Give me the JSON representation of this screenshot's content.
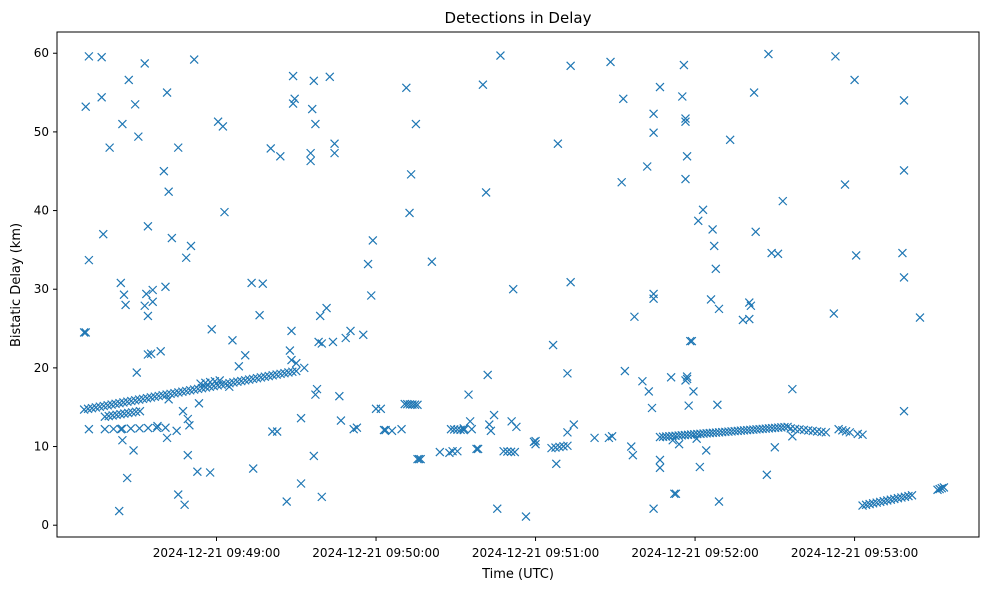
{
  "chart_data": {
    "type": "scatter",
    "title": "Detections in Delay",
    "xlabel": "Time (UTC)",
    "ylabel": "Bistatic Delay (km)",
    "x_unit": "minutes since 2024-12-21 09:48:00 UTC",
    "xlim": [
      0.0,
      5.78
    ],
    "ylim": [
      -1.5,
      62.7
    ],
    "x_ticks": [
      {
        "value": 1,
        "label": "2024-12-21 09:49:00"
      },
      {
        "value": 2,
        "label": "2024-12-21 09:50:00"
      },
      {
        "value": 3,
        "label": "2024-12-21 09:51:00"
      },
      {
        "value": 4,
        "label": "2024-12-21 09:52:00"
      },
      {
        "value": 5,
        "label": "2024-12-21 09:53:00"
      }
    ],
    "y_ticks": [
      0,
      10,
      20,
      30,
      40,
      50,
      60
    ],
    "marker": "x",
    "color": "#1f77b4",
    "grid": false,
    "track_segments": [
      {
        "x0": 0.17,
        "y0": 14.7,
        "x1": 1.5,
        "y1": 19.6,
        "n": 55
      },
      {
        "x0": 0.3,
        "y0": 13.8,
        "x1": 0.52,
        "y1": 14.5,
        "n": 10
      },
      {
        "x0": 0.3,
        "y0": 12.2,
        "x1": 0.68,
        "y1": 12.4,
        "n": 8
      },
      {
        "x0": 0.9,
        "y0": 18.0,
        "x1": 1.02,
        "y1": 18.4,
        "n": 5
      },
      {
        "x0": 2.18,
        "y0": 15.4,
        "x1": 2.26,
        "y1": 15.3,
        "n": 6
      },
      {
        "x0": 2.26,
        "y0": 8.4,
        "x1": 2.28,
        "y1": 8.4,
        "n": 3
      },
      {
        "x0": 2.47,
        "y0": 12.2,
        "x1": 2.55,
        "y1": 12.1,
        "n": 5
      },
      {
        "x0": 2.8,
        "y0": 9.4,
        "x1": 2.87,
        "y1": 9.3,
        "n": 4
      },
      {
        "x0": 3.1,
        "y0": 9.8,
        "x1": 3.2,
        "y1": 10.1,
        "n": 5
      },
      {
        "x0": 3.78,
        "y0": 11.2,
        "x1": 4.58,
        "y1": 12.5,
        "n": 42
      },
      {
        "x0": 4.6,
        "y0": 12.3,
        "x1": 4.82,
        "y1": 11.8,
        "n": 9
      },
      {
        "x0": 4.9,
        "y0": 12.2,
        "x1": 4.97,
        "y1": 11.8,
        "n": 4
      },
      {
        "x0": 5.02,
        "y0": 11.6,
        "x1": 5.05,
        "y1": 11.5,
        "n": 2
      },
      {
        "x0": 5.05,
        "y0": 2.5,
        "x1": 5.36,
        "y1": 3.8,
        "n": 15
      },
      {
        "x0": 5.52,
        "y0": 4.5,
        "x1": 5.56,
        "y1": 4.8,
        "n": 4
      }
    ],
    "points": [
      [
        0.17,
        24.5
      ],
      [
        0.18,
        24.5
      ],
      [
        0.18,
        53.2
      ],
      [
        0.2,
        59.6
      ],
      [
        0.2,
        33.7
      ],
      [
        0.2,
        12.2
      ],
      [
        0.28,
        59.5
      ],
      [
        0.28,
        54.4
      ],
      [
        0.29,
        37.0
      ],
      [
        0.33,
        48.0
      ],
      [
        0.4,
        30.8
      ],
      [
        0.41,
        51.0
      ],
      [
        0.42,
        29.3
      ],
      [
        0.43,
        28.0
      ],
      [
        0.45,
        56.6
      ],
      [
        0.49,
        53.5
      ],
      [
        0.51,
        49.4
      ],
      [
        0.55,
        58.7
      ],
      [
        0.57,
        38.0
      ],
      [
        0.57,
        26.6
      ],
      [
        0.55,
        27.9
      ],
      [
        0.56,
        29.4
      ],
      [
        0.6,
        29.9
      ],
      [
        0.6,
        28.4
      ],
      [
        0.67,
        45.0
      ],
      [
        0.69,
        55.0
      ],
      [
        0.7,
        42.4
      ],
      [
        0.72,
        36.5
      ],
      [
        0.76,
        48.0
      ],
      [
        0.79,
        14.5
      ],
      [
        0.81,
        34.0
      ],
      [
        0.82,
        13.5
      ],
      [
        0.84,
        35.5
      ],
      [
        0.86,
        59.2
      ],
      [
        0.68,
        30.3
      ],
      [
        0.4,
        12.2
      ],
      [
        0.41,
        10.8
      ],
      [
        0.39,
        1.8
      ],
      [
        0.44,
        6.0
      ],
      [
        0.48,
        9.5
      ],
      [
        0.5,
        19.4
      ],
      [
        0.57,
        21.7
      ],
      [
        0.59,
        21.8
      ],
      [
        0.63,
        12.6
      ],
      [
        0.65,
        22.1
      ],
      [
        0.69,
        11.1
      ],
      [
        0.7,
        16.0
      ],
      [
        0.75,
        12.0
      ],
      [
        0.76,
        3.9
      ],
      [
        0.8,
        2.6
      ],
      [
        0.82,
        8.9
      ],
      [
        0.83,
        12.7
      ],
      [
        0.88,
        6.8
      ],
      [
        0.89,
        15.5
      ],
      [
        0.96,
        6.7
      ],
      [
        0.97,
        24.9
      ],
      [
        1.01,
        51.3
      ],
      [
        1.04,
        50.7
      ],
      [
        1.05,
        39.8
      ],
      [
        1.08,
        17.6
      ],
      [
        1.1,
        23.5
      ],
      [
        1.14,
        20.2
      ],
      [
        1.22,
        30.8
      ],
      [
        1.29,
        30.7
      ],
      [
        1.27,
        26.7
      ],
      [
        1.23,
        7.2
      ],
      [
        1.18,
        21.6
      ],
      [
        1.34,
        47.9
      ],
      [
        1.35,
        11.9
      ],
      [
        1.38,
        11.9
      ],
      [
        1.4,
        46.9
      ],
      [
        1.44,
        3.0
      ],
      [
        1.46,
        22.2
      ],
      [
        1.47,
        21.0
      ],
      [
        1.47,
        24.7
      ],
      [
        1.48,
        57.1
      ],
      [
        1.48,
        53.6
      ],
      [
        1.49,
        54.2
      ],
      [
        1.5,
        20.6
      ],
      [
        1.53,
        13.6
      ],
      [
        1.55,
        20.0
      ],
      [
        1.59,
        47.3
      ],
      [
        1.59,
        46.3
      ],
      [
        1.6,
        52.9
      ],
      [
        1.61,
        56.5
      ],
      [
        1.62,
        51.0
      ],
      [
        1.64,
        23.3
      ],
      [
        1.65,
        26.6
      ],
      [
        1.66,
        23.1
      ],
      [
        1.69,
        27.6
      ],
      [
        1.71,
        57.0
      ],
      [
        1.73,
        23.3
      ],
      [
        1.74,
        48.5
      ],
      [
        1.74,
        47.3
      ],
      [
        1.53,
        5.3
      ],
      [
        1.61,
        8.8
      ],
      [
        1.62,
        16.6
      ],
      [
        1.63,
        17.3
      ],
      [
        1.66,
        3.6
      ],
      [
        1.77,
        16.4
      ],
      [
        1.78,
        13.3
      ],
      [
        1.81,
        23.8
      ],
      [
        1.84,
        24.7
      ],
      [
        1.86,
        12.2
      ],
      [
        1.88,
        12.4
      ],
      [
        1.92,
        24.2
      ],
      [
        1.95,
        33.2
      ],
      [
        1.97,
        29.2
      ],
      [
        1.98,
        36.2
      ],
      [
        2.0,
        14.8
      ],
      [
        2.03,
        14.8
      ],
      [
        2.05,
        12.1
      ],
      [
        2.06,
        12.1
      ],
      [
        2.1,
        12.0
      ],
      [
        2.16,
        12.2
      ],
      [
        2.19,
        55.6
      ],
      [
        2.21,
        39.7
      ],
      [
        2.22,
        44.6
      ],
      [
        2.25,
        51.0
      ],
      [
        2.35,
        33.5
      ],
      [
        2.4,
        9.3
      ],
      [
        2.46,
        9.2
      ],
      [
        2.48,
        9.4
      ],
      [
        2.51,
        9.4
      ],
      [
        2.55,
        12.3
      ],
      [
        2.58,
        16.6
      ],
      [
        2.59,
        13.2
      ],
      [
        2.6,
        12.2
      ],
      [
        2.63,
        9.7
      ],
      [
        2.64,
        9.7
      ],
      [
        2.67,
        56.0
      ],
      [
        2.69,
        42.3
      ],
      [
        2.7,
        19.1
      ],
      [
        2.71,
        12.8
      ],
      [
        2.72,
        12.0
      ],
      [
        2.74,
        14.0
      ],
      [
        2.76,
        2.1
      ],
      [
        2.78,
        59.7
      ],
      [
        2.85,
        13.2
      ],
      [
        2.88,
        12.5
      ],
      [
        2.86,
        30.0
      ],
      [
        2.94,
        1.1
      ],
      [
        2.99,
        10.6
      ],
      [
        3.0,
        10.3
      ],
      [
        3.0,
        10.7
      ],
      [
        3.11,
        22.9
      ],
      [
        3.13,
        7.8
      ],
      [
        3.14,
        48.5
      ],
      [
        3.2,
        19.3
      ],
      [
        3.2,
        11.8
      ],
      [
        3.22,
        58.4
      ],
      [
        3.22,
        30.9
      ],
      [
        3.24,
        12.8
      ],
      [
        3.37,
        11.1
      ],
      [
        3.46,
        11.1
      ],
      [
        3.48,
        11.3
      ],
      [
        3.47,
        58.9
      ],
      [
        3.55,
        54.2
      ],
      [
        3.54,
        43.6
      ],
      [
        3.56,
        19.6
      ],
      [
        3.6,
        10.0
      ],
      [
        3.61,
        8.9
      ],
      [
        3.62,
        26.5
      ],
      [
        3.67,
        18.3
      ],
      [
        3.7,
        45.6
      ],
      [
        3.71,
        17.0
      ],
      [
        3.73,
        14.9
      ],
      [
        3.74,
        52.3
      ],
      [
        3.74,
        49.9
      ],
      [
        3.74,
        29.4
      ],
      [
        3.74,
        28.8
      ],
      [
        3.74,
        2.1
      ],
      [
        3.78,
        55.7
      ],
      [
        3.78,
        8.3
      ],
      [
        3.78,
        7.3
      ],
      [
        3.85,
        18.8
      ],
      [
        3.86,
        10.8
      ],
      [
        3.87,
        4.0
      ],
      [
        3.88,
        4.0
      ],
      [
        3.9,
        10.3
      ],
      [
        3.92,
        54.5
      ],
      [
        3.93,
        58.5
      ],
      [
        3.94,
        51.3
      ],
      [
        3.94,
        51.7
      ],
      [
        3.94,
        44.0
      ],
      [
        3.95,
        46.9
      ],
      [
        3.94,
        18.4
      ],
      [
        3.95,
        18.9
      ],
      [
        3.95,
        18.6
      ],
      [
        3.96,
        15.2
      ],
      [
        3.97,
        23.4
      ],
      [
        3.98,
        23.4
      ],
      [
        3.99,
        17.0
      ],
      [
        4.01,
        11.0
      ],
      [
        4.02,
        38.7
      ],
      [
        4.05,
        40.1
      ],
      [
        4.03,
        7.4
      ],
      [
        4.07,
        9.5
      ],
      [
        4.1,
        28.7
      ],
      [
        4.11,
        37.6
      ],
      [
        4.12,
        35.5
      ],
      [
        4.13,
        32.6
      ],
      [
        4.14,
        15.3
      ],
      [
        4.15,
        27.5
      ],
      [
        4.15,
        3.0
      ],
      [
        4.22,
        49.0
      ],
      [
        4.3,
        26.1
      ],
      [
        4.34,
        28.3
      ],
      [
        4.35,
        27.9
      ],
      [
        4.37,
        55.0
      ],
      [
        4.38,
        37.3
      ],
      [
        4.34,
        26.2
      ],
      [
        4.45,
        6.4
      ],
      [
        4.46,
        59.9
      ],
      [
        4.48,
        34.6
      ],
      [
        4.52,
        34.5
      ],
      [
        4.55,
        41.2
      ],
      [
        4.61,
        17.3
      ],
      [
        4.5,
        9.9
      ],
      [
        4.61,
        11.3
      ],
      [
        4.88,
        59.6
      ],
      [
        4.87,
        26.9
      ],
      [
        4.94,
        43.3
      ],
      [
        5.0,
        56.6
      ],
      [
        5.01,
        34.3
      ],
      [
        5.31,
        54.0
      ],
      [
        5.31,
        45.1
      ],
      [
        5.3,
        34.6
      ],
      [
        5.31,
        31.5
      ],
      [
        5.31,
        14.5
      ],
      [
        5.41,
        26.4
      ]
    ]
  }
}
